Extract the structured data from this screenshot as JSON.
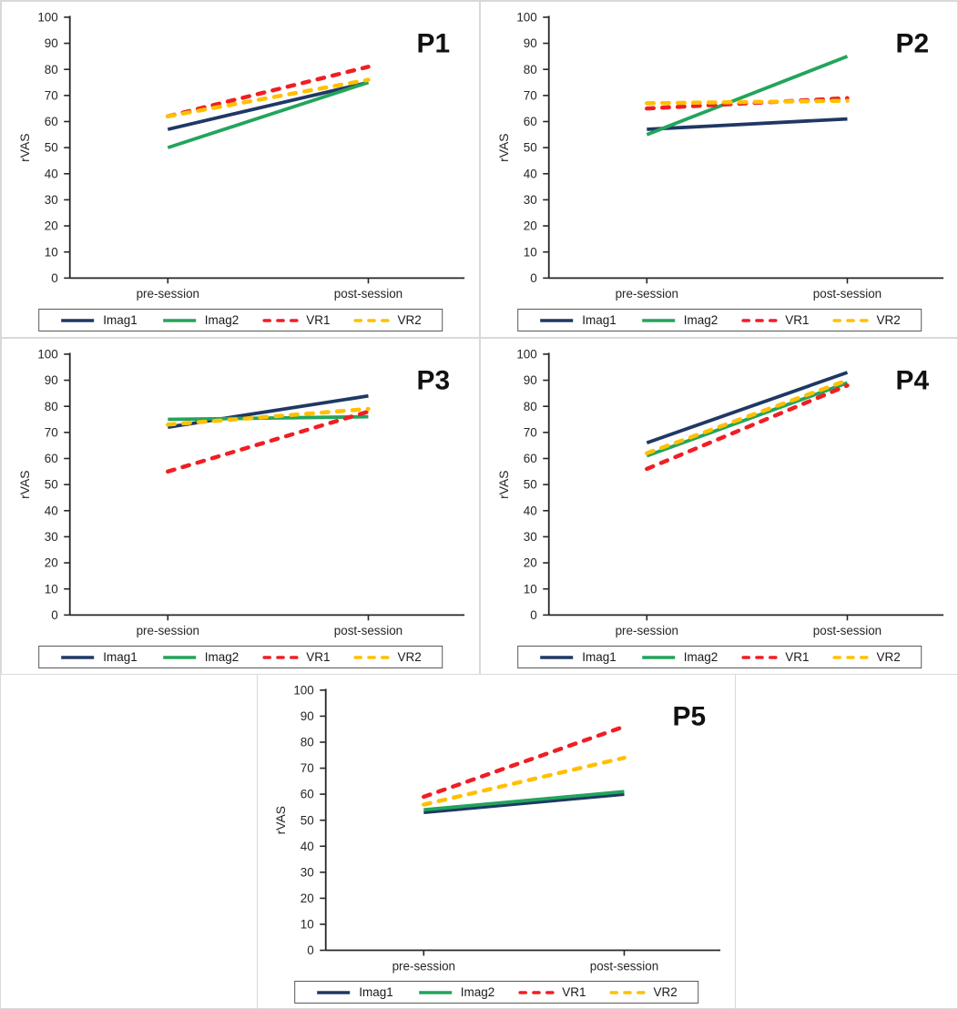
{
  "figure": {
    "panel_titles": [
      "P1",
      "P2",
      "P3",
      "P4",
      "P5"
    ],
    "y_axis_title": "rVAS",
    "x_categories": [
      "pre-session",
      "post-session"
    ],
    "legend_labels": [
      "Imag1",
      "Imag2",
      "VR1",
      "VR2"
    ]
  },
  "colors": {
    "imag1": "#1F3864",
    "imag2": "#23A45C",
    "vr1": "#F01E23",
    "vr2": "#FFC000",
    "axis": "#262626",
    "tick_text": "#262626",
    "title_text": "#111111",
    "panel_border": "#D9D9D9",
    "legend_border": "#595959"
  },
  "chart_data": [
    {
      "type": "line",
      "title": "P1",
      "ylabel": "rVAS",
      "xlabel": "",
      "categories": [
        "pre-session",
        "post-session"
      ],
      "ylim": [
        0,
        100
      ],
      "ytick_step": 10,
      "grid": false,
      "legend_position": "bottom",
      "series": [
        {
          "name": "Imag1",
          "values": [
            57,
            75
          ],
          "color": "#1F3864",
          "style": "solid"
        },
        {
          "name": "Imag2",
          "values": [
            50,
            75
          ],
          "color": "#23A45C",
          "style": "solid"
        },
        {
          "name": "VR1",
          "values": [
            62,
            81
          ],
          "color": "#F01E23",
          "style": "dashed"
        },
        {
          "name": "VR2",
          "values": [
            62,
            76
          ],
          "color": "#FFC000",
          "style": "dashed"
        }
      ]
    },
    {
      "type": "line",
      "title": "P2",
      "ylabel": "rVAS",
      "xlabel": "",
      "categories": [
        "pre-session",
        "post-session"
      ],
      "ylim": [
        0,
        100
      ],
      "ytick_step": 10,
      "grid": false,
      "legend_position": "bottom",
      "series": [
        {
          "name": "Imag1",
          "values": [
            57,
            61
          ],
          "color": "#1F3864",
          "style": "solid"
        },
        {
          "name": "Imag2",
          "values": [
            55,
            85
          ],
          "color": "#23A45C",
          "style": "solid"
        },
        {
          "name": "VR1",
          "values": [
            65,
            69
          ],
          "color": "#F01E23",
          "style": "dashed"
        },
        {
          "name": "VR2",
          "values": [
            67,
            68
          ],
          "color": "#FFC000",
          "style": "dashed"
        }
      ]
    },
    {
      "type": "line",
      "title": "P3",
      "ylabel": "rVAS",
      "xlabel": "",
      "categories": [
        "pre-session",
        "post-session"
      ],
      "ylim": [
        0,
        100
      ],
      "ytick_step": 10,
      "grid": false,
      "legend_position": "bottom",
      "series": [
        {
          "name": "Imag1",
          "values": [
            72,
            84
          ],
          "color": "#1F3864",
          "style": "solid"
        },
        {
          "name": "Imag2",
          "values": [
            75,
            76
          ],
          "color": "#23A45C",
          "style": "solid"
        },
        {
          "name": "VR1",
          "values": [
            55,
            78
          ],
          "color": "#F01E23",
          "style": "dashed"
        },
        {
          "name": "VR2",
          "values": [
            73,
            79
          ],
          "color": "#FFC000",
          "style": "dashed"
        }
      ]
    },
    {
      "type": "line",
      "title": "P4",
      "ylabel": "rVAS",
      "xlabel": "",
      "categories": [
        "pre-session",
        "post-session"
      ],
      "ylim": [
        0,
        100
      ],
      "ytick_step": 10,
      "grid": false,
      "legend_position": "bottom",
      "series": [
        {
          "name": "Imag1",
          "values": [
            66,
            93
          ],
          "color": "#1F3864",
          "style": "solid"
        },
        {
          "name": "Imag2",
          "values": [
            61,
            89
          ],
          "color": "#23A45C",
          "style": "solid"
        },
        {
          "name": "VR1",
          "values": [
            56,
            88
          ],
          "color": "#F01E23",
          "style": "dashed"
        },
        {
          "name": "VR2",
          "values": [
            62,
            90
          ],
          "color": "#FFC000",
          "style": "dashed"
        }
      ]
    },
    {
      "type": "line",
      "title": "P5",
      "ylabel": "rVAS",
      "xlabel": "",
      "categories": [
        "pre-session",
        "post-session"
      ],
      "ylim": [
        0,
        100
      ],
      "ytick_step": 10,
      "grid": false,
      "legend_position": "bottom",
      "series": [
        {
          "name": "Imag1",
          "values": [
            53,
            60
          ],
          "color": "#1F3864",
          "style": "solid"
        },
        {
          "name": "Imag2",
          "values": [
            54,
            61
          ],
          "color": "#23A45C",
          "style": "solid"
        },
        {
          "name": "VR1",
          "values": [
            59,
            86
          ],
          "color": "#F01E23",
          "style": "dashed"
        },
        {
          "name": "VR2",
          "values": [
            56,
            74
          ],
          "color": "#FFC000",
          "style": "dashed"
        }
      ]
    }
  ]
}
